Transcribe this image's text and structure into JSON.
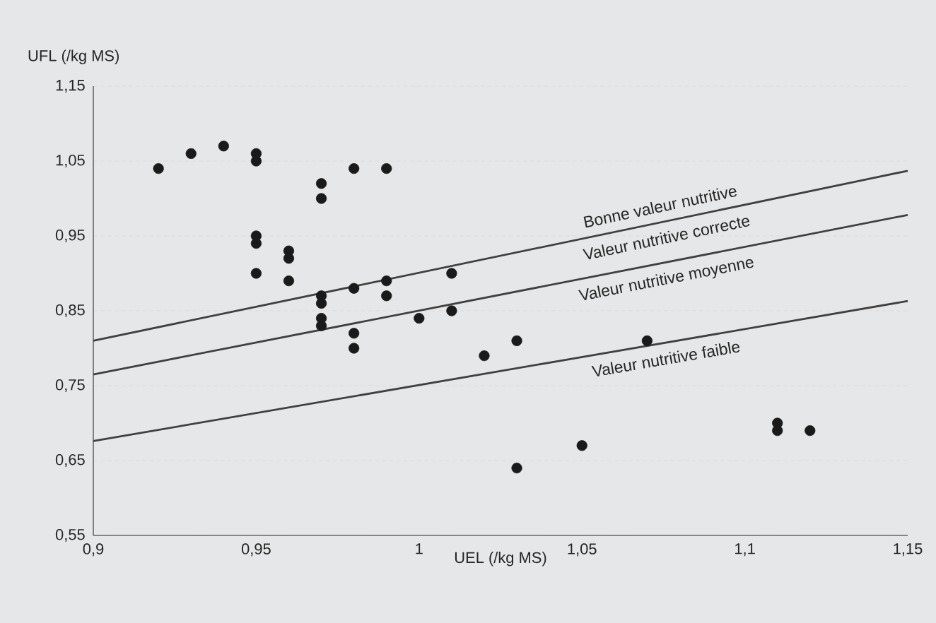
{
  "chart_data": {
    "type": "scatter",
    "xlabel": "UEL (/kg MS)",
    "ylabel": "UFL (/kg MS)",
    "xlim": [
      0.9,
      1.15
    ],
    "ylim": [
      0.55,
      1.15
    ],
    "xticks": [
      {
        "value": 0.9,
        "label": "0,9"
      },
      {
        "value": 0.95,
        "label": "0,95"
      },
      {
        "value": 1,
        "label": "1"
      },
      {
        "value": 1.05,
        "label": "1,05"
      },
      {
        "value": 1.1,
        "label": "1,1"
      },
      {
        "value": 1.15,
        "label": "1,15"
      }
    ],
    "yticks": [
      {
        "value": 0.55,
        "label": "0,55"
      },
      {
        "value": 0.65,
        "label": "0,65"
      },
      {
        "value": 0.75,
        "label": "0,75"
      },
      {
        "value": 0.85,
        "label": "0,85"
      },
      {
        "value": 0.95,
        "label": "0,95"
      },
      {
        "value": 1.05,
        "label": "1,05"
      },
      {
        "value": 1.15,
        "label": "1,15"
      }
    ],
    "grid": "y",
    "series": [
      {
        "marker": "circle",
        "color": "#1a1a1a",
        "x": [
          0.92,
          0.93,
          0.94,
          0.95,
          0.95,
          0.95,
          0.95,
          0.95,
          0.96,
          0.96,
          0.96,
          0.97,
          0.97,
          0.97,
          0.97,
          0.97,
          0.97,
          0.98,
          0.98,
          0.98,
          0.98,
          0.99,
          0.99,
          0.99,
          1.0,
          1.01,
          1.01,
          1.02,
          1.03,
          1.03,
          1.05,
          1.07,
          1.11,
          1.11,
          1.12
        ],
        "values": [
          1.04,
          1.06,
          1.07,
          1.06,
          1.05,
          0.95,
          0.94,
          0.9,
          0.93,
          0.92,
          0.89,
          1.02,
          1.0,
          0.87,
          0.86,
          0.84,
          0.83,
          1.04,
          0.88,
          0.82,
          0.8,
          1.04,
          0.89,
          0.87,
          0.84,
          0.9,
          0.85,
          0.79,
          0.81,
          0.64,
          0.67,
          0.81,
          0.7,
          0.69,
          0.69
        ]
      },
      {
        "type": "line",
        "marker": "none",
        "color": "#404040",
        "x": [
          0.9,
          1.15
        ],
        "values": [
          0.81,
          1.037
        ]
      },
      {
        "type": "line",
        "marker": "none",
        "color": "#404040",
        "x": [
          0.9,
          1.15
        ],
        "values": [
          0.765,
          0.978
        ]
      },
      {
        "type": "line",
        "marker": "none",
        "color": "#404040",
        "x": [
          0.9,
          1.15
        ],
        "values": [
          0.676,
          0.863
        ]
      }
    ],
    "annotations": [
      "Bonne valeur nutritive",
      "Valeur nutritive correcte",
      "Valeur nutritive moyenne",
      "Valeur nutritive faible"
    ]
  }
}
